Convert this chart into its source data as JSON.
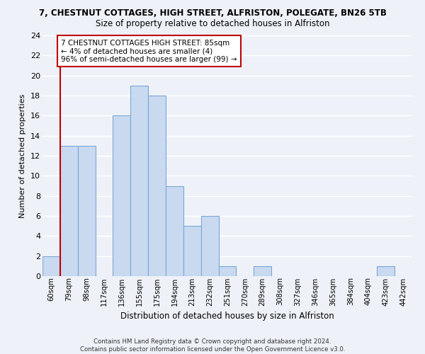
{
  "title": "7, CHESTNUT COTTAGES, HIGH STREET, ALFRISTON, POLEGATE, BN26 5TB",
  "subtitle": "Size of property relative to detached houses in Alfriston",
  "xlabel": "Distribution of detached houses by size in Alfriston",
  "ylabel": "Number of detached properties",
  "bin_labels": [
    "60sqm",
    "79sqm",
    "98sqm",
    "117sqm",
    "136sqm",
    "155sqm",
    "175sqm",
    "194sqm",
    "213sqm",
    "232sqm",
    "251sqm",
    "270sqm",
    "289sqm",
    "308sqm",
    "327sqm",
    "346sqm",
    "365sqm",
    "384sqm",
    "404sqm",
    "423sqm",
    "442sqm"
  ],
  "values": [
    2,
    13,
    13,
    0,
    16,
    19,
    18,
    9,
    5,
    6,
    1,
    0,
    1,
    0,
    0,
    0,
    0,
    0,
    0,
    1,
    0
  ],
  "bar_color": "#c9d9f0",
  "bar_edge_color": "#7aa6d6",
  "red_line_x": 0.5,
  "highlight_color": "#c00000",
  "ylim": [
    0,
    24
  ],
  "yticks": [
    0,
    2,
    4,
    6,
    8,
    10,
    12,
    14,
    16,
    18,
    20,
    22,
    24
  ],
  "annotation_lines": [
    "7 CHESTNUT COTTAGES HIGH STREET: 85sqm",
    "← 4% of detached houses are smaller (4)",
    "96% of semi-detached houses are larger (99) →"
  ],
  "annotation_box_color": "#c00000",
  "footer_line1": "Contains HM Land Registry data © Crown copyright and database right 2024.",
  "footer_line2": "Contains public sector information licensed under the Open Government Licence v3.0.",
  "background_color": "#eef2f8",
  "grid_color": "#ffffff"
}
